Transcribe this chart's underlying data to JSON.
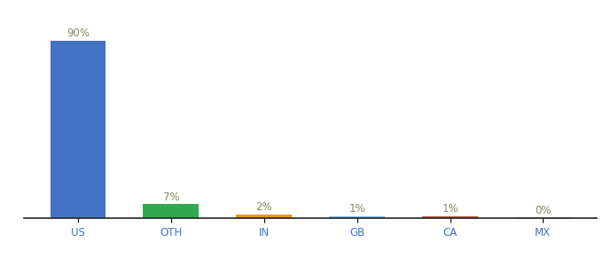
{
  "categories": [
    "US",
    "OTH",
    "IN",
    "GB",
    "CA",
    "MX"
  ],
  "values": [
    90,
    7,
    2,
    1,
    1,
    0.3
  ],
  "labels": [
    "90%",
    "7%",
    "2%",
    "1%",
    "1%",
    "0%"
  ],
  "bar_colors": [
    "#4472c4",
    "#33a853",
    "#e8960a",
    "#6bbcde",
    "#b94a2c",
    "#aaaaaa"
  ],
  "tick_color": "#4472c4",
  "label_color": "#888866",
  "label_fontsize": 8.5,
  "tick_fontsize": 8.5,
  "background_color": "#ffffff",
  "ylim": [
    0,
    100
  ],
  "bar_width": 0.6
}
